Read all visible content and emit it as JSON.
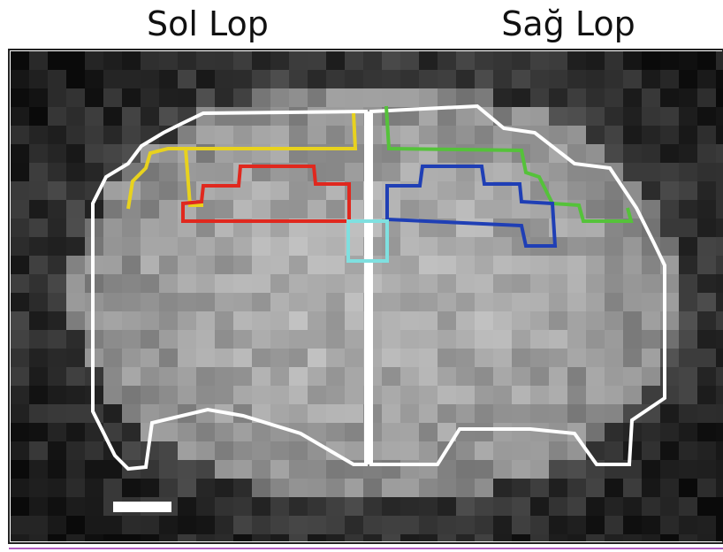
{
  "labels": {
    "left": "Sol Lop",
    "right": "Sağ Lop"
  }
}
